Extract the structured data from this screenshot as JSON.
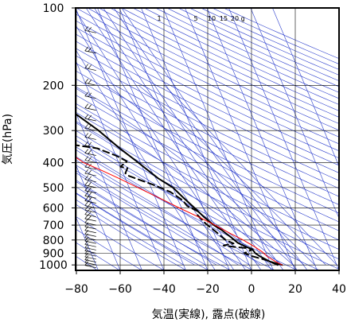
{
  "chart_data": {
    "type": "line",
    "title": "",
    "xlabel": "気温(実線), 露点(破線)",
    "ylabel": "気圧(hPa)",
    "x_axis": {
      "min": -80,
      "max": 40,
      "ticks": [
        -80,
        -60,
        -40,
        -20,
        0,
        20,
        40
      ],
      "tick_labels": [
        "−80",
        "−60",
        "−40",
        "−20",
        "0",
        "20",
        "40"
      ]
    },
    "y_axis": {
      "scale": "log",
      "min": 100,
      "max": 1050,
      "inverted": true,
      "ticks": [
        100,
        200,
        300,
        400,
        500,
        600,
        700,
        800,
        900,
        1000
      ],
      "tick_labels": [
        "100",
        "200",
        "300",
        "400",
        "500",
        "600",
        "700",
        "800",
        "900",
        "1000"
      ]
    },
    "grid": true,
    "mixing_ratio_labels": [
      "1",
      "5",
      "10",
      "15",
      "20",
      "g"
    ],
    "series": [
      {
        "role": "temperature",
        "style": "solid",
        "color": "#000000",
        "points": [
          [
            15.0,
            1000
          ],
          [
            10.0,
            970
          ],
          [
            8.5,
            950
          ],
          [
            6.5,
            925
          ],
          [
            5.0,
            900
          ],
          [
            4.5,
            870
          ],
          [
            2.0,
            850
          ],
          [
            -1.0,
            820
          ],
          [
            -3.0,
            780
          ],
          [
            -6.0,
            730
          ],
          [
            -8.5,
            700
          ],
          [
            -11.5,
            650
          ],
          [
            -14.0,
            600
          ],
          [
            -17.0,
            550
          ],
          [
            -20.0,
            500
          ],
          [
            -25.0,
            460
          ],
          [
            -31.0,
            400
          ],
          [
            -37.0,
            350
          ],
          [
            -43.0,
            300
          ],
          [
            -50.0,
            260
          ],
          [
            -56.0,
            225
          ],
          [
            -58.0,
            215
          ],
          [
            -56.0,
            200
          ],
          [
            -58.0,
            190
          ],
          [
            -58.5,
            170
          ],
          [
            -58.5,
            150
          ],
          [
            -55.0,
            125
          ],
          [
            -53.0,
            115
          ],
          [
            -50.5,
            108
          ],
          [
            -50.0,
            102
          ]
        ]
      },
      {
        "role": "dew_point",
        "style": "dashed",
        "color": "#000000",
        "points": [
          [
            13.0,
            1000
          ],
          [
            9.0,
            960
          ],
          [
            3.0,
            925
          ],
          [
            0.0,
            900
          ],
          [
            4.5,
            870
          ],
          [
            2.0,
            860
          ],
          [
            -4.0,
            850
          ],
          [
            -8.0,
            840
          ],
          [
            -3.0,
            825
          ],
          [
            -6.0,
            800
          ],
          [
            -9.0,
            740
          ],
          [
            -12.0,
            690
          ],
          [
            -14.0,
            640
          ],
          [
            -13.0,
            620
          ],
          [
            -17.0,
            590
          ],
          [
            -18.0,
            560
          ],
          [
            -22.0,
            520
          ],
          [
            -28.0,
            490
          ],
          [
            -38.0,
            450
          ],
          [
            -39.0,
            440
          ],
          [
            -37.0,
            420
          ],
          [
            -40.0,
            415
          ],
          [
            -36.0,
            395
          ],
          [
            -40.0,
            375
          ],
          [
            -47.0,
            352
          ],
          [
            -58.0,
            340
          ],
          [
            -74.0,
            330
          ]
        ]
      },
      {
        "role": "parcel",
        "style": "solid",
        "color": "#ff0000",
        "points": [
          [
            15.0,
            1000
          ],
          [
            13.0,
            975
          ],
          [
            10.0,
            930
          ],
          [
            8.5,
            890
          ],
          [
            6.0,
            850
          ],
          [
            2.0,
            800
          ],
          [
            -3.0,
            750
          ],
          [
            -8.0,
            700
          ],
          [
            -14.0,
            650
          ],
          [
            -21.0,
            600
          ],
          [
            -28.0,
            550
          ],
          [
            -36.0,
            500
          ],
          [
            -43.0,
            460
          ],
          [
            -49.0,
            430
          ],
          [
            -56.0,
            400
          ],
          [
            -63.0,
            350
          ],
          [
            -69.0,
            300
          ],
          [
            -73.0,
            260
          ],
          [
            -76.0,
            230
          ],
          [
            -78.0,
            210
          ],
          [
            -80.0,
            195
          ]
        ]
      }
    ],
    "dry_adiabat_thetas_K": [
      190,
      200,
      210,
      220,
      230,
      240,
      250,
      260,
      270,
      280,
      290,
      300,
      310,
      320,
      330,
      340,
      350,
      360,
      370,
      380,
      390,
      400,
      410,
      420,
      430,
      440,
      450,
      460,
      470,
      480,
      490,
      500,
      510,
      520,
      530,
      540,
      550,
      560,
      570,
      580,
      590,
      600
    ],
    "moist_adiabat_start_temps_C": [
      -30,
      -25,
      -20,
      -15,
      -10,
      -5,
      0,
      5,
      10,
      15,
      20,
      25,
      30,
      35,
      40
    ],
    "mixing_ratios_gkg": [
      1,
      2,
      3,
      5,
      7,
      10,
      15,
      20
    ],
    "wind_barbs_column_x": -71
  }
}
